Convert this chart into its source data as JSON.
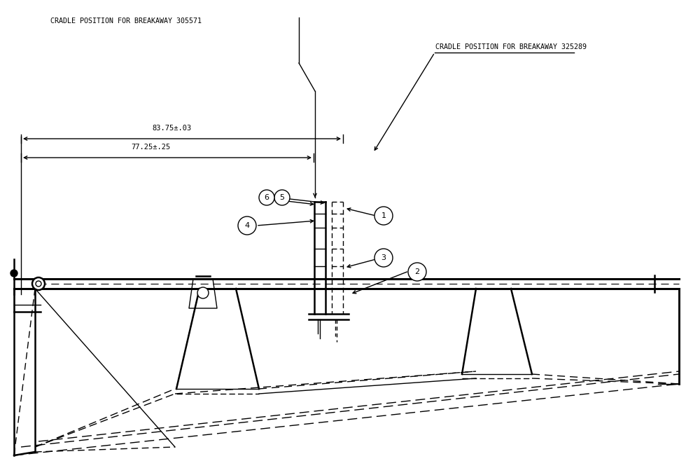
{
  "bg_color": "#ffffff",
  "line_color": "#000000",
  "text_color": "#000000",
  "title1": "CRADLE POSITION FOR BREAKAWAY 305571",
  "title2": "CRADLE POSITION FOR BREAKAWAY 325289",
  "dim1": "83.75±.03",
  "dim2": "77.25±.25",
  "figsize": [
    10.0,
    6.68
  ],
  "dpi": 100
}
